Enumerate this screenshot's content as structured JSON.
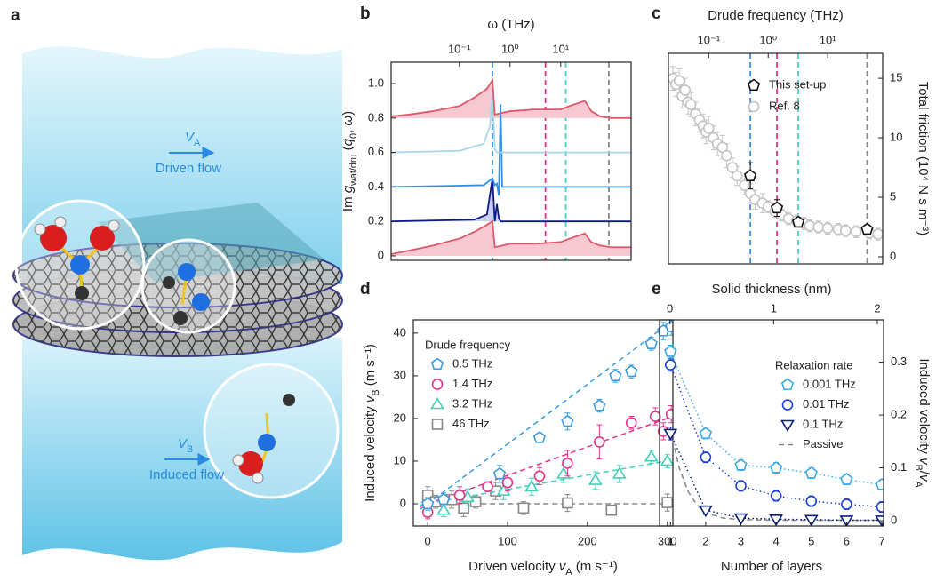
{
  "illustration": {
    "panel": "a",
    "driven_symbol": [
      {
        "text": "V",
        "style": "italic"
      },
      {
        "text": "A",
        "style": "sub"
      }
    ],
    "driven_label": "Driven flow",
    "induced_symbol": [
      {
        "text": "V",
        "style": "italic"
      },
      {
        "text": "B",
        "style": "sub"
      }
    ],
    "induced_label": "Induced flow"
  },
  "chart_data": [
    {
      "panel": "b",
      "type": "line",
      "x_label": "ω (THz)",
      "x_axis_side": "top",
      "x_scale": "log",
      "xlim": [
        0.0045,
        245
      ],
      "xticks": [
        {
          "value": 0.1,
          "label": "10⁻¹"
        },
        {
          "value": 1,
          "label": "10⁰"
        },
        {
          "value": 10,
          "label": "10¹"
        }
      ],
      "y_label": [
        {
          "text": "Im "
        },
        {
          "text": "g",
          "style": "italic"
        },
        {
          "text": "wat/dru",
          "style": "sub"
        },
        {
          "text": " ("
        },
        {
          "text": "q",
          "style": "italic"
        },
        {
          "text": "0",
          "style": "sub"
        },
        {
          "text": ", "
        },
        {
          "text": "ω",
          "style": "italic"
        },
        {
          "text": ")"
        }
      ],
      "ylim": [
        -0.026,
        1.124
      ],
      "yticks": [
        0,
        0.2,
        0.4,
        0.6,
        0.8,
        {
          "value": 1,
          "label": "1.0"
        }
      ],
      "vlines": [
        {
          "value": 0.45,
          "color": "#3a8fe0"
        },
        {
          "value": 5,
          "color": "#e4338a"
        },
        {
          "value": 12.6,
          "color": "#45d4c8"
        },
        {
          "value": 89,
          "color": "#888888"
        }
      ],
      "series": [
        {
          "color": "#e0566a",
          "fill": "#f6c9d2",
          "fill_to": 0,
          "x": [
            0.0045,
            0.01,
            0.03,
            0.1,
            0.2,
            0.35,
            0.45,
            0.5,
            0.7,
            1,
            3,
            10,
            15,
            30,
            40,
            60,
            100,
            245
          ],
          "values": [
            0.01,
            0.03,
            0.06,
            0.1,
            0.14,
            0.18,
            0.2,
            0.05,
            0.06,
            0.07,
            0.07,
            0.08,
            0.1,
            0.13,
            0.08,
            0.06,
            0.05,
            0.05
          ]
        },
        {
          "color": "#0a1a8a",
          "fill": "#c8d2ee",
          "fill_to": 0.2,
          "x": [
            0.0045,
            0.2,
            0.35,
            0.45,
            0.5,
            0.55,
            0.6,
            0.65,
            1,
            245
          ],
          "values": [
            0.2,
            0.21,
            0.24,
            0.45,
            0.2,
            0.3,
            0.22,
            0.2,
            0.2,
            0.2
          ]
        },
        {
          "color": "#2f8fe6",
          "x": [
            0.0045,
            0.3,
            0.45,
            0.5,
            0.55,
            0.6,
            0.65,
            0.7,
            0.75,
            1,
            245
          ],
          "values": [
            0.4,
            0.41,
            0.45,
            0.41,
            0.42,
            0.35,
            0.88,
            0.4,
            0.4,
            0.4,
            0.4
          ]
        },
        {
          "color": "#a6d8ea",
          "x": [
            0.0045,
            0.1,
            0.3,
            0.4,
            0.45,
            0.5,
            0.55,
            1,
            245
          ],
          "values": [
            0.6,
            0.61,
            0.65,
            0.75,
            0.95,
            0.62,
            0.6,
            0.6,
            0.6
          ]
        },
        {
          "color": "#e0566a",
          "fill": "#f6c9d2",
          "fill_to": 0.8,
          "x": [
            0.0045,
            0.01,
            0.03,
            0.1,
            0.2,
            0.35,
            0.45,
            0.5,
            0.7,
            1,
            3,
            10,
            15,
            30,
            40,
            60,
            100,
            245
          ],
          "values": [
            0.81,
            0.82,
            0.84,
            0.87,
            0.92,
            0.97,
            1.02,
            0.82,
            0.83,
            0.84,
            0.85,
            0.85,
            0.87,
            0.9,
            0.84,
            0.81,
            0.8,
            0.8
          ]
        }
      ]
    },
    {
      "panel": "c",
      "type": "scatter",
      "x_label": "Drude frequency (THz)",
      "x_axis_side": "top",
      "x_scale": "log",
      "xlim": [
        0.021,
        84
      ],
      "xticks": [
        {
          "value": 0.1,
          "label": "10⁻¹"
        },
        {
          "value": 1,
          "label": "10⁰"
        },
        {
          "value": 10,
          "label": "10¹"
        }
      ],
      "y_label": [
        {
          "text": "Total friction (10⁴ N s m⁻³)"
        }
      ],
      "y_axis_side": "right",
      "ylim": [
        -0.6,
        17.1
      ],
      "yticks": [
        0,
        5,
        10,
        15
      ],
      "vlines": [
        {
          "value": 0.5,
          "color": "#3a8fe0"
        },
        {
          "value": 1.4,
          "color": "#e4338a"
        },
        {
          "value": 3.2,
          "color": "#45d4c8"
        },
        {
          "value": 46,
          "color": "#888888"
        }
      ],
      "legend": "upper right",
      "series": [
        {
          "name": "This set-up",
          "color": "#111111",
          "marker": "pentagon",
          "x": [
            0.5,
            1.4,
            3.2,
            46
          ],
          "values": [
            6.8,
            4.1,
            2.9,
            2.3
          ],
          "errors": [
            1.1,
            0.7,
            0.4,
            0.3
          ]
        },
        {
          "name": "Ref. 8",
          "color": "#c4c4c4",
          "marker": "circle",
          "x": [
            0.025,
            0.028,
            0.032,
            0.036,
            0.04,
            0.045,
            0.05,
            0.06,
            0.07,
            0.08,
            0.09,
            0.1,
            0.12,
            0.14,
            0.17,
            0.2,
            0.25,
            0.3,
            0.4,
            0.5,
            0.6,
            0.8,
            1,
            1.3,
            1.7,
            2.2,
            3,
            4,
            5,
            7,
            10,
            15,
            20,
            30,
            50,
            70
          ],
          "values": [
            15,
            14.5,
            14.8,
            13.5,
            14,
            13,
            12.8,
            12,
            11.5,
            11,
            10.5,
            10.8,
            10,
            9.5,
            9.2,
            8.5,
            7.5,
            6.8,
            6,
            5.3,
            4.8,
            4.5,
            4.2,
            3.8,
            3.5,
            3.2,
            3,
            2.8,
            2.6,
            2.5,
            2.4,
            2.3,
            2.2,
            2.1,
            2.0,
            1.9
          ],
          "errors": [
            1,
            1,
            1,
            1,
            1,
            1,
            1,
            1,
            1,
            1,
            1,
            1,
            1,
            1,
            1,
            1,
            0.8,
            0.8,
            0.8,
            0.8,
            0.8,
            0.8,
            0.5,
            0.5,
            0.5,
            0.5,
            0.5,
            0.5,
            0.5,
            0.5,
            0.5,
            0.5,
            0.5,
            0.5,
            0.5,
            0.5
          ]
        }
      ]
    },
    {
      "panel": "d",
      "type": "scatter",
      "x_label": [
        {
          "text": "Driven velocity "
        },
        {
          "text": "v",
          "style": "italic"
        },
        {
          "text": "A",
          "style": "sub"
        },
        {
          "text": " (m s⁻¹)"
        }
      ],
      "xlim": [
        -18,
        307
      ],
      "xticks": [
        0,
        100,
        200,
        300
      ],
      "y_label": [
        {
          "text": "Induced velocity "
        },
        {
          "text": "v",
          "style": "italic"
        },
        {
          "text": "B",
          "style": "sub"
        },
        {
          "text": " (m s⁻¹)"
        }
      ],
      "ylim": [
        -5.2,
        43.1
      ],
      "yticks": [
        0,
        10,
        20,
        30,
        40
      ],
      "legend": "upper left",
      "legend_title": "Drude frequency",
      "series": [
        {
          "name": "0.5 THz",
          "color": "#3a9be0",
          "marker": "pentagon",
          "x": [
            0,
            20,
            90,
            140,
            175,
            215,
            235,
            255,
            280,
            295,
            305
          ],
          "values": [
            0,
            1,
            7,
            15.5,
            19.3,
            23,
            30,
            31,
            37.5,
            40.5,
            41.5
          ],
          "errors": [
            1.5,
            1.5,
            2,
            1,
            2,
            1.5,
            1.5,
            1.5,
            1.5,
            2,
            2
          ],
          "fit": {
            "x": [
              -10,
              307
            ],
            "values": [
              -1.4,
              43
            ]
          }
        },
        {
          "name": "1.4 THz",
          "color": "#e4338a",
          "marker": "circle",
          "x": [
            0,
            40,
            75,
            100,
            140,
            175,
            215,
            255,
            285,
            295,
            305
          ],
          "values": [
            -2,
            2,
            4,
            5,
            6.5,
            9.5,
            14.5,
            19,
            20.5,
            17,
            21
          ],
          "errors": [
            1.5,
            2,
            1,
            2,
            2,
            3,
            4,
            1.5,
            2,
            2,
            2
          ],
          "fit": {
            "x": [
              -10,
              307
            ],
            "values": [
              -0.7,
              20.5
            ]
          }
        },
        {
          "name": "3.2 THz",
          "color": "#3fd1b8",
          "marker": "triangle",
          "x": [
            20,
            50,
            95,
            130,
            170,
            210,
            240,
            280,
            300
          ],
          "values": [
            -1.5,
            1.5,
            3,
            4,
            7,
            5.5,
            7,
            11,
            10
          ],
          "errors": [
            1.5,
            2,
            2,
            2,
            2,
            2,
            2,
            1.5,
            1.5
          ],
          "fit": {
            "x": [
              -10,
              307
            ],
            "values": [
              -0.3,
              10.3
            ]
          }
        },
        {
          "name": "46 THz",
          "color": "#888888",
          "marker": "square",
          "x": [
            0,
            10,
            30,
            45,
            60,
            85,
            120,
            175,
            230,
            300
          ],
          "values": [
            2,
            0.5,
            1,
            -1,
            0.5,
            3,
            -1,
            0.2,
            -1.5,
            0.3
          ],
          "errors": [
            2,
            1.5,
            2,
            2,
            1.5,
            2,
            1.5,
            2,
            1,
            2
          ],
          "fit": {
            "x": [
              0,
              307
            ],
            "values": [
              0,
              0
            ]
          }
        }
      ]
    },
    {
      "panel": "e",
      "type": "scatter",
      "x_label": "Number of layers",
      "xlim": [
        0.69,
        7.05
      ],
      "xticks": [
        1,
        2,
        3,
        4,
        5,
        6,
        7
      ],
      "x2_label": "Solid thickness (nm)",
      "x2lim": [
        -0.1,
        2.06
      ],
      "x2ticks": [
        0,
        1,
        2
      ],
      "y_label": [
        {
          "text": "Induced velocity "
        },
        {
          "text": "v",
          "style": "italic"
        },
        {
          "text": "B",
          "style": "sub"
        },
        {
          "text": "/"
        },
        {
          "text": "v",
          "style": "italic"
        },
        {
          "text": "A",
          "style": "sub"
        }
      ],
      "y_axis_side": "right",
      "ylim": [
        -0.01,
        0.38
      ],
      "yticks": [
        0,
        0.1,
        0.2,
        0.3
      ],
      "legend": "upper right",
      "legend_title": "Relaxation rate",
      "series": [
        {
          "name": "0.001 THz",
          "color": "#3aa9e8",
          "marker": "pentagon",
          "line": "dotted",
          "x": [
            1,
            2,
            3,
            4,
            5,
            6,
            7
          ],
          "values": [
            0.32,
            0.165,
            0.105,
            0.1,
            0.09,
            0.078,
            0.068
          ],
          "errors": [
            0.012,
            0.01,
            0.01,
            0.01,
            0.01,
            0.01,
            0.01
          ]
        },
        {
          "name": "0.01 THz",
          "color": "#1a3fd6",
          "marker": "circle",
          "line": "dotted",
          "x": [
            1,
            2,
            3,
            4,
            5,
            6,
            7
          ],
          "values": [
            0.295,
            0.12,
            0.066,
            0.047,
            0.037,
            0.031,
            0.026
          ],
          "errors": [
            0.012,
            0.01,
            0.01,
            0.01,
            0.01,
            0.01,
            0.01
          ]
        },
        {
          "name": "0.1 THz",
          "color": "#0c1f7a",
          "marker": "triangle-down",
          "line": "dotted",
          "x": [
            1,
            2,
            3,
            4,
            5,
            6,
            7
          ],
          "values": [
            0.165,
            0.02,
            0.005,
            0.003,
            0.002,
            0.001,
            0.001
          ],
          "errors": [
            0.012,
            0.008,
            0.005,
            0.005,
            0.005,
            0.005,
            0.005
          ]
        },
        {
          "name": "Passive",
          "color": "#888888",
          "line": "dashed",
          "x": [
            1,
            1.25,
            1.5,
            1.75,
            2,
            2.5,
            3,
            4,
            5,
            6,
            7
          ],
          "values": [
            0.17,
            0.1,
            0.055,
            0.03,
            0.015,
            0.005,
            0.002,
            0.001,
            0.001,
            0.001,
            0.001
          ]
        }
      ]
    }
  ]
}
